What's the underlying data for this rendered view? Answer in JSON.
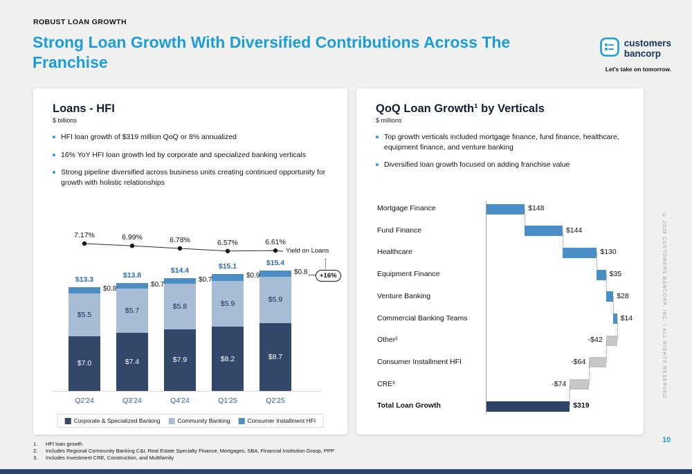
{
  "page": {
    "eyebrow": "ROBUST LOAN GROWTH",
    "title_line1": "Strong Loan Growth With Diversified Contributions Across The",
    "title_line2": "Franchise",
    "page_number": "10",
    "vertical_copyright": "© 2025 CUSTOMERS BANCORP, INC. / ALL RIGHTS RESERVED",
    "accent_blue": "#1a9dd9"
  },
  "logo": {
    "name_line1": "customers",
    "name_line2": "bancorp",
    "tagline": "Let's take on tomorrow."
  },
  "left_panel": {
    "title": "Loans - HFI",
    "subtitle": "$ billions",
    "bullets": [
      "HFI loan growth of $319 million QoQ or 8% annualized",
      "16% YoY HFI loan growth led by corporate and specialized banking verticals",
      "Strong pipeline diversified across business units creating continued opportunity for growth with holistic relationships"
    ]
  },
  "right_panel": {
    "title": "QoQ Loan Growth¹ by Verticals",
    "subtitle": "$ millions",
    "bullets": [
      "Top growth verticals included mortgage finance, fund finance, healthcare, equipment finance, and venture banking",
      "Diversified loan growth focused on adding franchise value"
    ]
  },
  "chart_data": [
    {
      "type": "bar",
      "title": "Loans - HFI",
      "unit": "$ billions",
      "categories": [
        "Q2'24",
        "Q3'24",
        "Q4'24",
        "Q1'25",
        "Q2'25"
      ],
      "series": [
        {
          "name": "Corporate & Specialized Banking",
          "color": "#33476b",
          "values": [
            7.0,
            7.4,
            7.9,
            8.2,
            8.7
          ],
          "labels": [
            "$7.0",
            "$7.4",
            "$7.9",
            "$8.2",
            "$8.7"
          ]
        },
        {
          "name": "Community Banking",
          "color": "#a9bcd6",
          "values": [
            5.5,
            5.7,
            5.8,
            5.9,
            5.9
          ],
          "labels": [
            "$5.5",
            "$5.7",
            "$5.8",
            "$5.9",
            "$5.9"
          ]
        },
        {
          "name": "Consumer Installment HFI",
          "color": "#4d8fc4",
          "values": [
            0.8,
            0.7,
            0.7,
            0.9,
            0.8
          ],
          "labels": [
            "$0.8",
            "$0.7",
            "$0.7",
            "$0.9",
            "$0.8"
          ]
        }
      ],
      "totals": [
        "$13.3",
        "$13.8",
        "$14.4",
        "$15.1",
        "$15.4"
      ],
      "yield_line": {
        "label": "Yield on Loans",
        "values": [
          7.17,
          6.99,
          6.78,
          6.57,
          6.61
        ],
        "labels": [
          "7.17%",
          "6.99%",
          "6.78%",
          "6.57%",
          "6.61%"
        ]
      },
      "annotation": "+16%",
      "ylim": [
        0,
        16
      ]
    },
    {
      "type": "waterfall",
      "title": "QoQ Loan Growth by Verticals",
      "unit": "$ millions",
      "categories": [
        "Mortgage Finance",
        "Fund Finance",
        "Healthcare",
        "Equipment Finance",
        "Venture Banking",
        "Commercial Banking Teams",
        "Other²",
        "Consumer Installment HFI",
        "CRE³",
        "Total Loan Growth"
      ],
      "values": [
        148,
        144,
        130,
        35,
        28,
        14,
        -42,
        -64,
        -74,
        319
      ],
      "value_labels": [
        "$148",
        "$144",
        "$130",
        "$35",
        "$28",
        "$14",
        "-$42",
        "-$64",
        "-$74",
        "$319"
      ],
      "is_total": [
        false,
        false,
        false,
        false,
        false,
        false,
        false,
        false,
        false,
        true
      ],
      "colors": {
        "positive": "#4a8ec5",
        "negative": "#c6c6c6",
        "total": "#2e4369"
      }
    }
  ],
  "footnotes": [
    {
      "num": "1.",
      "text": "HFI loan growth"
    },
    {
      "num": "2.",
      "text": "Includes Regional Community Banking C&I, Real Estate Specialty Finance, Mortgages, SBA, Financial Institution Group, PPP"
    },
    {
      "num": "3.",
      "text": "Includes Investment CRE, Construction, and Multifamily"
    }
  ]
}
